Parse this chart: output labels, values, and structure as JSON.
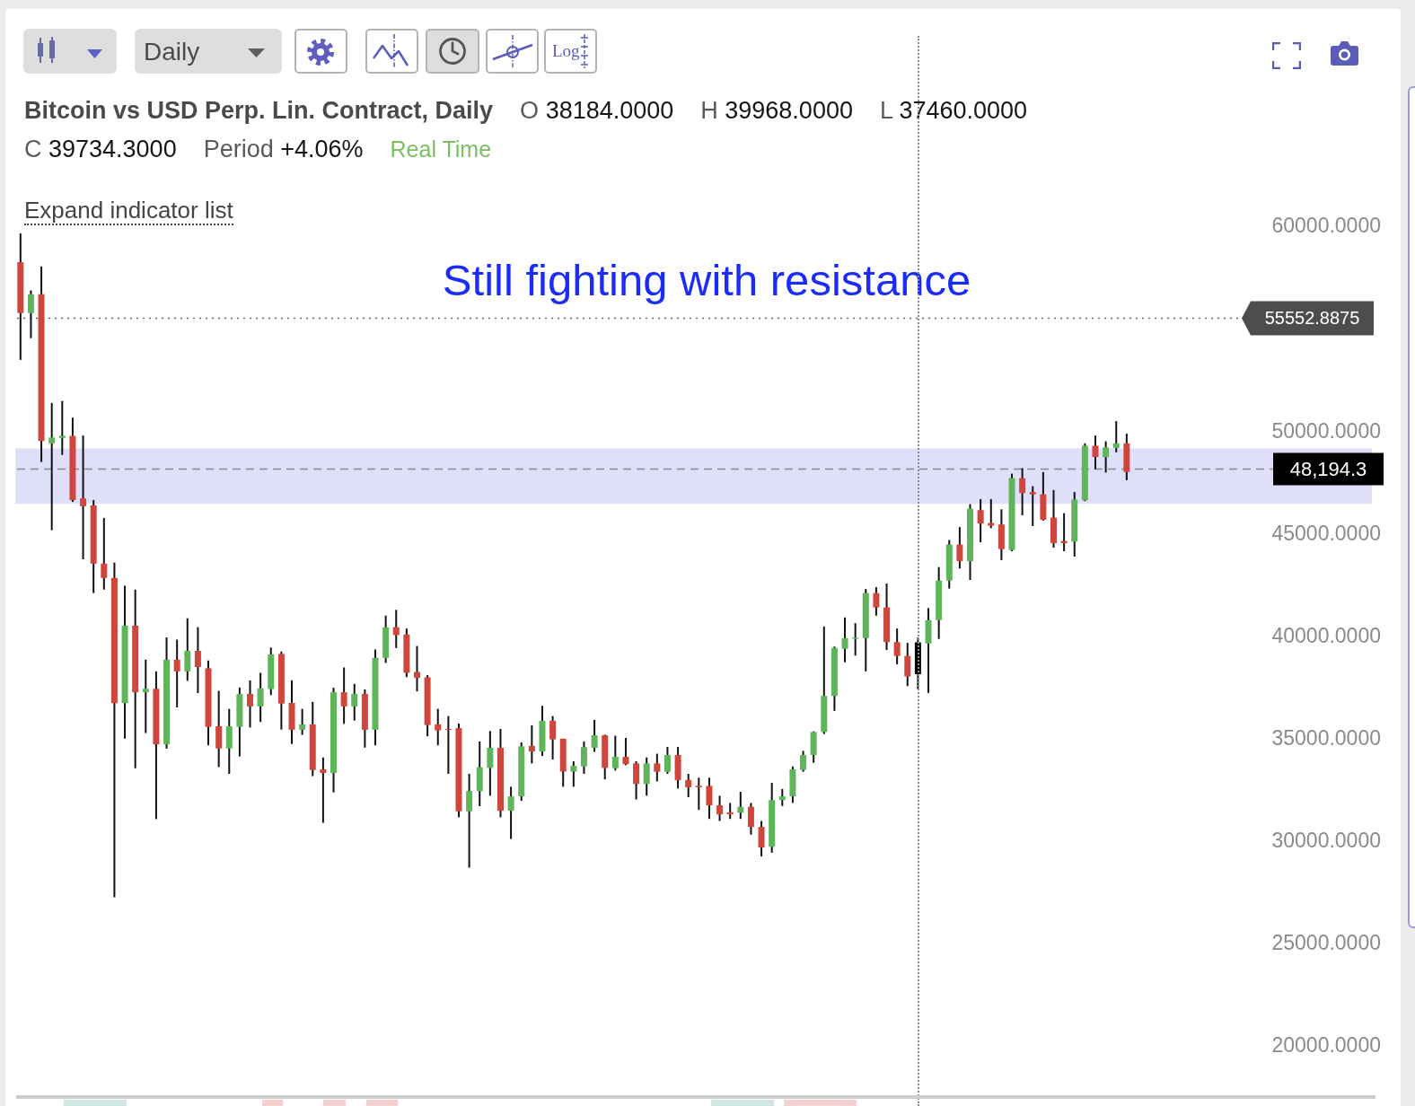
{
  "chart_data": {
    "type": "candlestick",
    "title": "Bitcoin vs USD Perp. Lin. Contract, Daily",
    "annotations": [
      "O 38184.0000",
      "H 39968.0000",
      "L 37460.0000",
      "C 39734.3000",
      "Period +4.06%",
      "Real Time",
      "Expand indicator list",
      "Still fighting with resistance",
      "Daily",
      "Log"
    ],
    "categories": [
      null,
      null,
      null,
      null,
      null,
      null,
      null,
      null,
      null,
      null,
      null,
      null,
      null,
      null,
      null,
      null,
      null,
      null,
      null,
      null,
      null,
      null,
      null,
      null,
      null,
      null,
      null,
      null,
      null,
      null,
      null,
      null,
      null,
      null,
      null,
      null,
      null,
      null,
      null,
      null,
      null,
      null,
      null,
      null,
      null,
      null,
      null,
      null,
      null,
      null,
      null,
      null,
      null,
      null,
      null,
      null,
      null,
      null,
      null,
      null,
      null,
      null,
      null,
      null,
      null,
      null,
      null,
      null,
      null,
      null,
      null,
      null,
      null,
      null,
      null,
      null,
      null,
      null,
      null,
      null,
      null,
      null,
      null,
      null,
      null,
      null,
      null,
      null,
      null,
      null,
      null,
      null,
      null,
      null,
      null,
      null,
      null,
      null,
      null,
      null,
      null,
      null,
      null,
      null,
      null,
      null,
      null,
      null,
      null,
      null,
      null,
      null,
      null,
      null,
      null,
      null,
      null,
      null,
      null,
      null,
      null,
      null,
      null,
      null,
      null,
      null,
      null,
      null,
      null,
      null
    ],
    "ohlc": [
      [
        58290,
        59690,
        53520,
        55810
      ],
      [
        55810,
        56910,
        54580,
        56720
      ],
      [
        56720,
        58080,
        48540,
        49560
      ],
      [
        49450,
        51420,
        45210,
        49730
      ],
      [
        49710,
        51510,
        48880,
        49810
      ],
      [
        49810,
        50700,
        46590,
        46680
      ],
      [
        46760,
        49830,
        43790,
        46380
      ],
      [
        46420,
        46680,
        42140,
        43580
      ],
      [
        43580,
        45810,
        42310,
        42880
      ],
      [
        42880,
        43620,
        27300,
        36770
      ],
      [
        36770,
        42500,
        35040,
        40550
      ],
      [
        40550,
        42310,
        33590,
        37300
      ],
      [
        37300,
        38890,
        35310,
        37470
      ],
      [
        37470,
        38320,
        31110,
        34760
      ],
      [
        34760,
        39980,
        34550,
        38890
      ],
      [
        38890,
        39870,
        36560,
        38320
      ],
      [
        38320,
        40910,
        37860,
        39320
      ],
      [
        39320,
        40480,
        37260,
        38530
      ],
      [
        38470,
        38850,
        34710,
        35610
      ],
      [
        35640,
        37370,
        33650,
        34560
      ],
      [
        34560,
        36490,
        33320,
        35640
      ],
      [
        35610,
        37530,
        34170,
        37220
      ],
      [
        37220,
        37880,
        35580,
        36610
      ],
      [
        36610,
        38250,
        35850,
        37490
      ],
      [
        37460,
        39480,
        37160,
        39150
      ],
      [
        39170,
        39290,
        35480,
        36750
      ],
      [
        36780,
        37880,
        34780,
        35470
      ],
      [
        35470,
        36490,
        35220,
        35730
      ],
      [
        35730,
        36830,
        33210,
        33510
      ],
      [
        33540,
        34120,
        30930,
        33360
      ],
      [
        33360,
        37520,
        32410,
        37300
      ],
      [
        37300,
        38510,
        35760,
        36610
      ],
      [
        36610,
        37710,
        35920,
        37220
      ],
      [
        37220,
        37440,
        34600,
        35470
      ],
      [
        35470,
        39390,
        34710,
        38980
      ],
      [
        38980,
        41040,
        38730,
        40470
      ],
      [
        40480,
        41320,
        39460,
        40090
      ],
      [
        40120,
        40410,
        38040,
        38250
      ],
      [
        38290,
        39560,
        37340,
        38000
      ],
      [
        38030,
        38140,
        35150,
        35700
      ],
      [
        35730,
        36490,
        34710,
        35440
      ],
      [
        35510,
        36140,
        33320,
        35470
      ],
      [
        35550,
        35770,
        31200,
        31490
      ],
      [
        31490,
        33320,
        28740,
        32480
      ],
      [
        32480,
        34900,
        31740,
        33640
      ],
      [
        33610,
        35410,
        32250,
        34590
      ],
      [
        34590,
        35510,
        31200,
        31520
      ],
      [
        31520,
        32690,
        30140,
        32220
      ],
      [
        32220,
        34850,
        32000,
        34660
      ],
      [
        34680,
        35690,
        33830,
        34410
      ],
      [
        34410,
        36640,
        34190,
        35910
      ],
      [
        35910,
        36140,
        34020,
        35000
      ],
      [
        35030,
        35040,
        32690,
        33430
      ],
      [
        33430,
        33930,
        32690,
        33710
      ],
      [
        33680,
        34900,
        33320,
        34620
      ],
      [
        34590,
        35950,
        34390,
        35200
      ],
      [
        35200,
        35230,
        33050,
        33610
      ],
      [
        33600,
        35180,
        33480,
        34150
      ],
      [
        34150,
        35070,
        33740,
        33790
      ],
      [
        33830,
        33930,
        32070,
        32830
      ],
      [
        32830,
        34120,
        32250,
        33830
      ],
      [
        33830,
        34300,
        32950,
        33420
      ],
      [
        33420,
        34630,
        33320,
        34240
      ],
      [
        34240,
        34630,
        32600,
        33010
      ],
      [
        33020,
        33320,
        32180,
        32660
      ],
      [
        32730,
        33130,
        31560,
        32660
      ],
      [
        32730,
        33130,
        31120,
        31780
      ],
      [
        31780,
        32250,
        31020,
        31340
      ],
      [
        31440,
        31900,
        31120,
        31340
      ],
      [
        31420,
        32440,
        31120,
        31710
      ],
      [
        31710,
        31900,
        30350,
        30730
      ],
      [
        30730,
        31020,
        29290,
        29730
      ],
      [
        29760,
        32880,
        29470,
        32040
      ],
      [
        32040,
        32580,
        31750,
        32220
      ],
      [
        32220,
        33680,
        31900,
        33540
      ],
      [
        33510,
        34440,
        33420,
        34240
      ],
      [
        34240,
        35390,
        33860,
        35360
      ],
      [
        35360,
        40510,
        35260,
        37120
      ],
      [
        37120,
        39530,
        36390,
        39460
      ],
      [
        39420,
        40950,
        38760,
        39940
      ],
      [
        39910,
        40670,
        39090,
        39970
      ],
      [
        39940,
        42340,
        38320,
        42140
      ],
      [
        42140,
        42430,
        41040,
        41440
      ],
      [
        41440,
        42610,
        39360,
        39750
      ],
      [
        39750,
        40410,
        38660,
        39070
      ],
      [
        39070,
        39710,
        37600,
        38070
      ],
      [
        38184,
        39968,
        37460,
        39734.3
      ],
      [
        39680,
        41410,
        37270,
        40820
      ],
      [
        40820,
        43410,
        39900,
        42750
      ],
      [
        42750,
        44730,
        42360,
        44510
      ],
      [
        44510,
        45360,
        43340,
        43700
      ],
      [
        43700,
        46480,
        42780,
        46260
      ],
      [
        46190,
        46730,
        44620,
        45530
      ],
      [
        45560,
        46730,
        45310,
        45430
      ],
      [
        45490,
        46230,
        43750,
        44290
      ],
      [
        44240,
        47970,
        44180,
        47750
      ],
      [
        47750,
        48240,
        45940,
        47020
      ],
      [
        47070,
        47360,
        45410,
        46960
      ],
      [
        46960,
        48050,
        45680,
        45720
      ],
      [
        45820,
        47170,
        44360,
        44580
      ],
      [
        44680,
        46040,
        44180,
        44580
      ],
      [
        44650,
        47070,
        43920,
        46700
      ],
      [
        46670,
        49450,
        46630,
        49330
      ],
      [
        49330,
        49830,
        48190,
        48780
      ],
      [
        48780,
        49550,
        48020,
        49250
      ],
      [
        49220,
        50530,
        49010,
        49450
      ],
      [
        49450,
        49920,
        47650,
        48050
      ],
      null,
      null,
      null,
      null,
      null,
      null,
      null,
      null,
      null,
      null,
      null,
      null,
      null,
      null,
      null,
      null,
      null,
      null,
      null,
      null,
      null,
      null,
      null
    ],
    "colors": [
      "#d0463c",
      "#5fb55a",
      "#d0463c",
      "#5fb55a",
      "#5fb55a",
      "#d0463c",
      "#d0463c",
      "#d0463c",
      "#d0463c",
      "#d0463c",
      "#5fb55a",
      "#d0463c",
      "#5fb55a",
      "#d0463c",
      "#5fb55a",
      "#d0463c",
      "#5fb55a",
      "#d0463c",
      "#d0463c",
      "#d0463c",
      "#5fb55a",
      "#5fb55a",
      "#d0463c",
      "#5fb55a",
      "#5fb55a",
      "#d0463c",
      "#d0463c",
      "#5fb55a",
      "#d0463c",
      "#d0463c",
      "#5fb55a",
      "#d0463c",
      "#5fb55a",
      "#d0463c",
      "#5fb55a",
      "#5fb55a",
      "#d0463c",
      "#d0463c",
      "#d0463c",
      "#d0463c",
      "#d0463c",
      "#d0463c",
      "#d0463c",
      "#5fb55a",
      "#5fb55a",
      "#5fb55a",
      "#d0463c",
      "#5fb55a",
      "#5fb55a",
      "#d0463c",
      "#5fb55a",
      "#d0463c",
      "#d0463c",
      "#5fb55a",
      "#5fb55a",
      "#5fb55a",
      "#d0463c",
      "#5fb55a",
      "#d0463c",
      "#d0463c",
      "#5fb55a",
      "#d0463c",
      "#5fb55a",
      "#d0463c",
      "#d0463c",
      "#d0463c",
      "#d0463c",
      "#d0463c",
      "#d0463c",
      "#5fb55a",
      "#d0463c",
      "#d0463c",
      "#5fb55a",
      "#5fb55a",
      "#5fb55a",
      "#5fb55a",
      "#5fb55a",
      "#5fb55a",
      "#5fb55a",
      "#5fb55a",
      "#5fb55a",
      "#5fb55a",
      "#d0463c",
      "#d0463c",
      "#d0463c",
      "#d0463c",
      "#000000",
      "#5fb55a",
      "#5fb55a",
      "#5fb55a",
      "#d0463c",
      "#5fb55a",
      "#d0463c",
      "#d0463c",
      "#d0463c",
      "#5fb55a",
      "#d0463c",
      "#d0463c",
      "#d0463c",
      "#d0463c",
      "#d0463c",
      "#5fb55a",
      "#5fb55a",
      "#d0463c",
      "#5fb55a",
      "#5fb55a",
      "#d0463c",
      null,
      null,
      null,
      null,
      null,
      null,
      null,
      null,
      null,
      null,
      null,
      null,
      null,
      null,
      null,
      null,
      null,
      null,
      null,
      null,
      null,
      null,
      null
    ],
    "ylim": [
      20000,
      60000
    ],
    "yticks": [
      {
        "value": 20000,
        "label": "20000.0000"
      },
      {
        "value": 25000,
        "label": "25000.0000"
      },
      {
        "value": 30000,
        "label": "30000.0000"
      },
      {
        "value": 35000,
        "label": "35000.0000"
      },
      {
        "value": 40000,
        "label": "40000.0000"
      },
      {
        "value": 45000,
        "label": "45000.0000"
      },
      {
        "value": 50000,
        "label": "50000.0000"
      },
      {
        "value": 60000,
        "label": "60000.0000"
      }
    ],
    "ref_lines": [
      {
        "axis": "y",
        "value": 55552.8875,
        "label": "55552.8875",
        "color": "#666666",
        "line_style": "dotted"
      },
      {
        "axis": "y",
        "value": 48194.3,
        "label": "48,194.3",
        "color": "#8a8a8a",
        "line_style": "dashed"
      }
    ],
    "bands": [
      {
        "axis": "y",
        "from": 46500,
        "to": 49200,
        "color": "#dfdffa"
      }
    ],
    "tick_labels": "y"
  }
}
